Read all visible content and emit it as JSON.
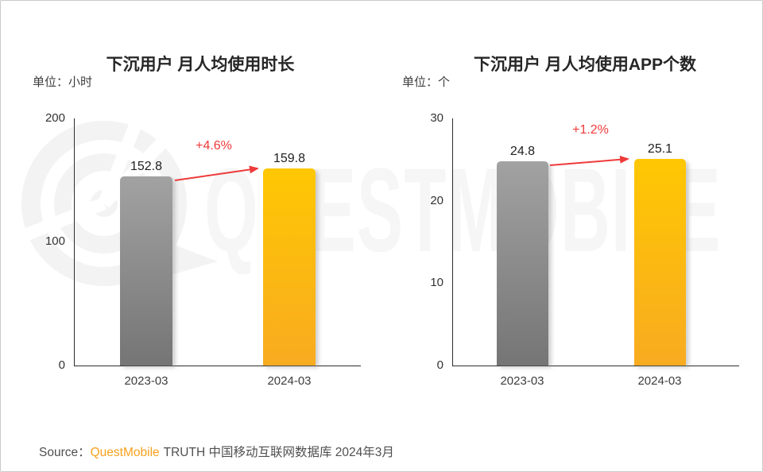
{
  "watermark": {
    "text": "QUESTMOBILE",
    "logo": "questmobile-q-logo",
    "color": "#f6f6f6"
  },
  "colors": {
    "gray_bar_top": "#a2a2a2",
    "gray_bar_bottom": "#757575",
    "yellow_bar_top": "#ffc703",
    "yellow_bar_bottom": "#f8ab20",
    "change_red": "#f03a3a",
    "brand_orange": "#f7a11c",
    "axis": "#2e2e2e"
  },
  "chart_data": [
    {
      "type": "bar",
      "title": "下沉用户 月人均使用时长",
      "unit_label": "单位：小时",
      "categories": [
        "2023-03",
        "2024-03"
      ],
      "values": [
        152.8,
        159.8
      ],
      "value_labels": [
        "152.8",
        "159.8"
      ],
      "change_label": "+4.6%",
      "ylim": [
        0,
        200
      ],
      "yticks": [
        "0",
        "100",
        "200"
      ],
      "grid": false,
      "legend": false,
      "bar_gradients": [
        [
          "#a2a2a2",
          "#757575"
        ],
        [
          "#ffc703",
          "#f8ab20"
        ]
      ]
    },
    {
      "type": "bar",
      "title": "下沉用户 月人均使用APP个数",
      "unit_label": "单位：个",
      "categories": [
        "2023-03",
        "2024-03"
      ],
      "values": [
        24.8,
        25.1
      ],
      "value_labels": [
        "24.8",
        "25.1"
      ],
      "change_label": "+1.2%",
      "ylim": [
        0,
        30
      ],
      "yticks": [
        "0",
        "10",
        "20",
        "30"
      ],
      "grid": false,
      "legend": false,
      "bar_gradients": [
        [
          "#a2a2a2",
          "#757575"
        ],
        [
          "#ffc703",
          "#f8ab20"
        ]
      ]
    }
  ],
  "source": {
    "prefix": "Source：",
    "brand": "QuestMobile",
    "suffix": "TRUTH 中国移动互联网数据库 2024年3月"
  }
}
